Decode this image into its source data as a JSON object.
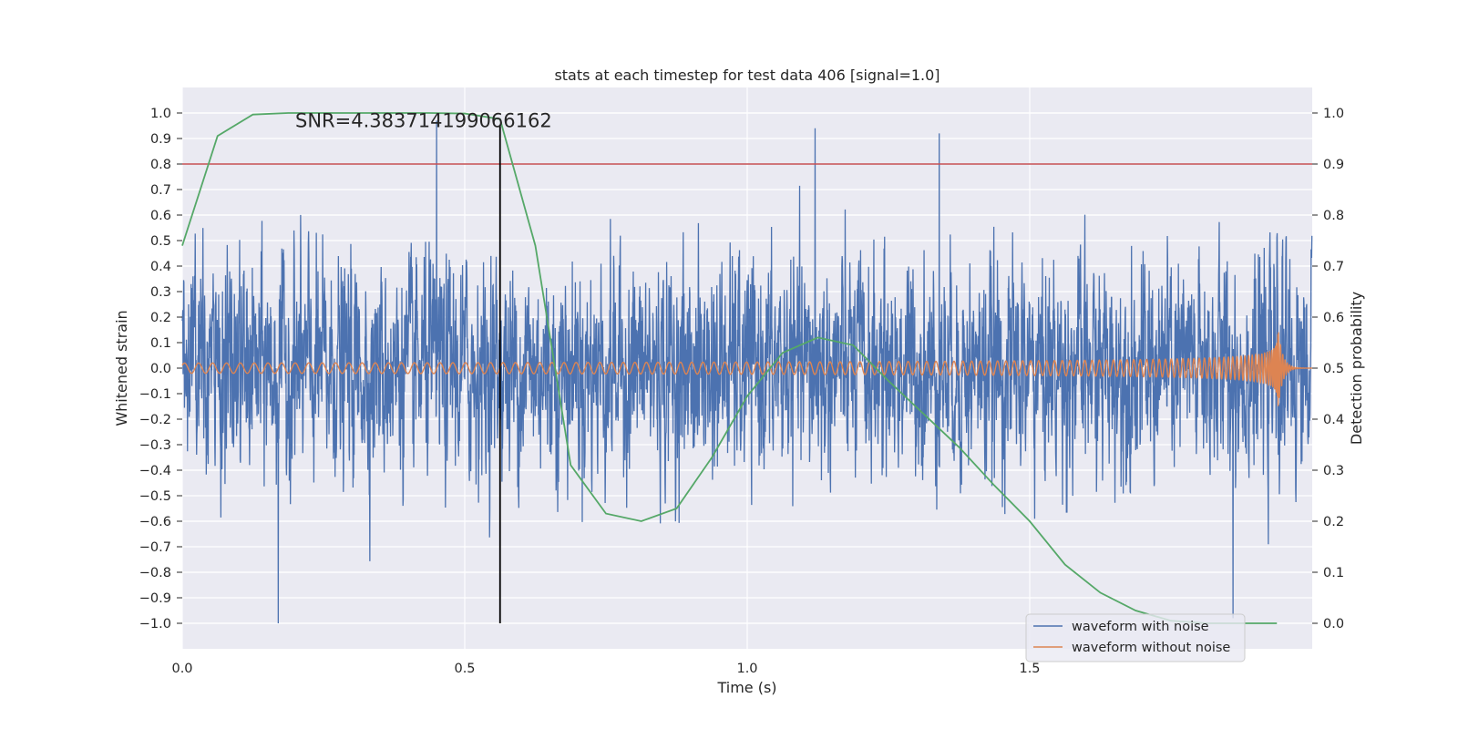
{
  "chart_data": {
    "type": "line",
    "title": "stats at each timestep for test data 406 [signal=1.0]",
    "xlabel": "Time (s)",
    "ylabel": "Whitened strain",
    "y2label": "Detection probability",
    "xlim": [
      0,
      2.0
    ],
    "ylim": [
      -1.1,
      1.1
    ],
    "y2lim": [
      -0.05,
      1.05
    ],
    "xticks": [
      0,
      0.5,
      1.0,
      1.5
    ],
    "xtick_labels": [
      "0.0",
      "0.5",
      "1.0",
      "1.5"
    ],
    "yticks": [
      -1.0,
      -0.9,
      -0.8,
      -0.7,
      -0.6,
      -0.5,
      -0.4,
      -0.3,
      -0.2,
      -0.1,
      0.0,
      0.1,
      0.2,
      0.3,
      0.4,
      0.5,
      0.6,
      0.7,
      0.8,
      0.9,
      1.0
    ],
    "ytick_labels": [
      "−1.0",
      "−0.9",
      "−0.8",
      "−0.7",
      "−0.6",
      "−0.5",
      "−0.4",
      "−0.3",
      "−0.2",
      "−0.1",
      "0.0",
      "0.1",
      "0.2",
      "0.3",
      "0.4",
      "0.5",
      "0.6",
      "0.7",
      "0.8",
      "0.9",
      "1.0"
    ],
    "y2ticks": [
      0.0,
      0.1,
      0.2,
      0.3,
      0.4,
      0.5,
      0.6,
      0.7,
      0.8,
      0.9,
      1.0
    ],
    "y2tick_labels": [
      "0.0",
      "0.1",
      "0.2",
      "0.3",
      "0.4",
      "0.5",
      "0.6",
      "0.7",
      "0.8",
      "0.9",
      "1.0"
    ],
    "grid": true,
    "legend_position": "bottom-right",
    "annotation": "SNR=4.383714199066162",
    "annotation_at": {
      "x": 0.2,
      "y": 0.97
    },
    "threshold": {
      "axis": "y2",
      "value": 0.9,
      "color": "#c44e52"
    },
    "marker_line": {
      "x": 0.5625,
      "y_from": -1.0,
      "y_to": 0.95,
      "color": "#000000"
    },
    "series": [
      {
        "name": "waveform with noise",
        "axis": "y",
        "color": "#4c72b0",
        "style": "noise",
        "sample_rate": 2048,
        "t_end": 2.0,
        "amplitude_scale": 0.33,
        "clip": [
          -1.0,
          1.0
        ],
        "notable_extrema": [
          {
            "x": 0.17,
            "y": -1.0
          },
          {
            "x": 0.45,
            "y": 0.97
          },
          {
            "x": 1.12,
            "y": 0.94
          },
          {
            "x": 1.34,
            "y": 0.92
          },
          {
            "x": 1.86,
            "y": -0.98
          }
        ]
      },
      {
        "name": "waveform without noise",
        "axis": "y",
        "color": "#dd8452",
        "style": "chirp",
        "t_start": 0.0,
        "t_merger": 1.94,
        "t_end": 2.0,
        "f_start": 40,
        "amp_start": 0.02,
        "amp_peak": 0.15
      },
      {
        "name": "Detection probability",
        "axis": "y2",
        "color": "#55a868",
        "style": "line",
        "x": [
          0.0,
          0.0625,
          0.125,
          0.1875,
          0.25,
          0.3125,
          0.375,
          0.4375,
          0.5,
          0.5625,
          0.625,
          0.6875,
          0.75,
          0.8125,
          0.875,
          0.9375,
          1.0,
          1.0625,
          1.125,
          1.1875,
          1.25,
          1.3125,
          1.375,
          1.4375,
          1.5,
          1.5625,
          1.625,
          1.6875,
          1.75,
          1.8125,
          1.875,
          1.9375
        ],
        "values": [
          0.74,
          0.955,
          0.997,
          1.0,
          1.0,
          1.0,
          1.0,
          1.0,
          0.999,
          0.988,
          0.74,
          0.31,
          0.215,
          0.2,
          0.225,
          0.325,
          0.445,
          0.53,
          0.56,
          0.545,
          0.475,
          0.41,
          0.345,
          0.27,
          0.2,
          0.115,
          0.06,
          0.025,
          0.005,
          0.0,
          0.0,
          0.0
        ]
      }
    ],
    "legend": [
      {
        "label": "waveform with noise",
        "color": "#4c72b0"
      },
      {
        "label": "waveform without noise",
        "color": "#dd8452"
      }
    ]
  }
}
